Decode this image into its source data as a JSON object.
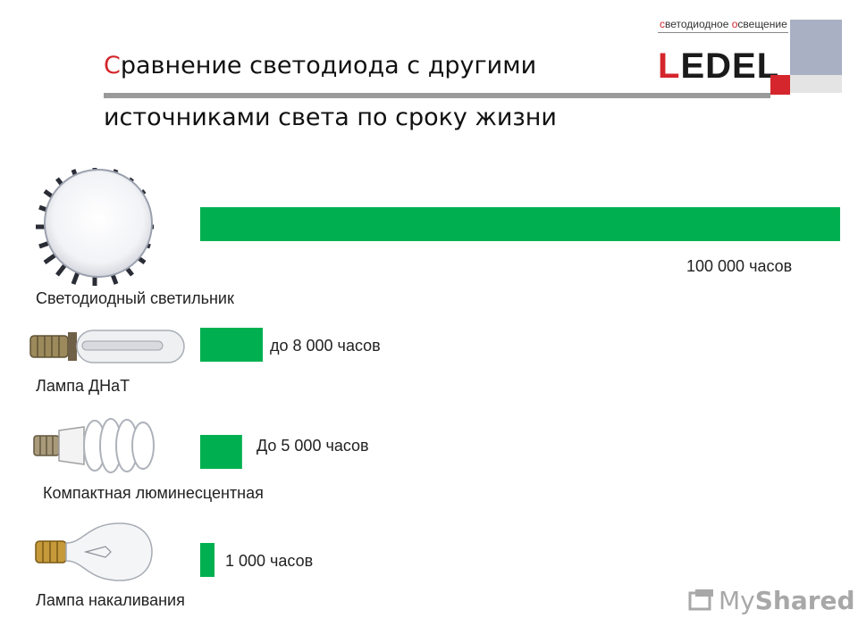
{
  "slide": {
    "title_first_letter": "С",
    "title_line1_rest": "равнение светодиода с другими",
    "title_line2": "источниками света по сроку жизни"
  },
  "logo": {
    "tagline_c1": "с",
    "tagline_p1": "ветодиодное ",
    "tagline_c2": "о",
    "tagline_p2": "свещение",
    "word_l": "L",
    "word_e": "E",
    "word_rest": "DEL",
    "colors": {
      "accent": "#d4262c",
      "panel": "#a9b0c3"
    }
  },
  "chart_data": {
    "type": "bar",
    "orientation": "horizontal",
    "categories": [
      "Светодиодный светильник",
      "Лампа ДНаТ",
      "Компактная люминесцентная",
      "Лампа накаливания"
    ],
    "values": [
      100000,
      8000,
      5000,
      1000
    ],
    "value_labels": [
      "100 000 часов",
      "до 8 000 часов",
      "До 5 000 часов",
      "1 000 часов"
    ],
    "color": "#00b050",
    "xlim": [
      0,
      100000
    ],
    "grid": false,
    "legend": false
  },
  "icons": [
    "led-luminaire-icon",
    "hps-lamp-icon",
    "cfl-lamp-icon",
    "incandescent-bulb-icon",
    "myshared-logo-icon"
  ],
  "watermark": {
    "my": "My",
    "shared": "Shared"
  }
}
